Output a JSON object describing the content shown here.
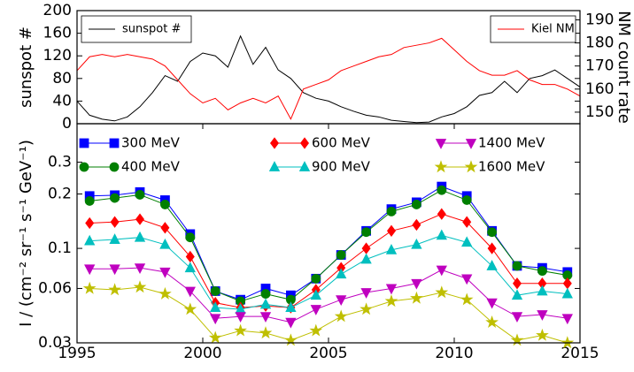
{
  "chart_data": [
    {
      "type": "line",
      "ylabel": "sunspot #",
      "y2label": "NM count rate",
      "x": [
        1995,
        1995.5,
        1996,
        1996.5,
        1997,
        1997.5,
        1998,
        1998.5,
        1999,
        1999.5,
        2000,
        2000.5,
        2001,
        2001.5,
        2002,
        2002.5,
        2003,
        2003.5,
        2004,
        2004.5,
        2005,
        2005.5,
        2006,
        2006.5,
        2007,
        2007.5,
        2008,
        2008.5,
        2009,
        2009.5,
        2010,
        2010.5,
        2011,
        2011.5,
        2012,
        2012.5,
        2013,
        2013.5,
        2014,
        2014.5,
        2015
      ],
      "xlim": [
        1995,
        2015
      ],
      "ylim": [
        0,
        200
      ],
      "yticks": [
        0,
        40,
        80,
        120,
        160,
        200
      ],
      "y2lim": [
        145,
        194
      ],
      "y2ticks": [
        150,
        160,
        170,
        180,
        190
      ],
      "series": [
        {
          "name": "sunspot #",
          "color": "#000000",
          "axis": "y",
          "legend": "upper left",
          "values": [
            40,
            15,
            8,
            5,
            12,
            30,
            55,
            85,
            75,
            110,
            125,
            120,
            100,
            155,
            105,
            135,
            95,
            80,
            55,
            45,
            40,
            30,
            22,
            15,
            12,
            6,
            4,
            2,
            3,
            12,
            18,
            30,
            50,
            55,
            75,
            55,
            80,
            85,
            95,
            80,
            65
          ]
        },
        {
          "name": "Kiel NM",
          "color": "#ff0000",
          "axis": "y2",
          "legend": "upper right",
          "values": [
            168,
            174,
            175,
            174,
            175,
            174,
            173,
            170,
            164,
            158,
            154,
            156,
            151,
            154,
            156,
            154,
            157,
            147,
            160,
            162,
            164,
            168,
            170,
            172,
            174,
            175,
            178,
            179,
            180,
            182,
            177,
            172,
            168,
            166,
            166,
            168,
            164,
            162,
            162,
            160,
            157
          ]
        }
      ]
    },
    {
      "type": "line",
      "log_y": true,
      "ylabel": "I / (cm⁻² sr⁻¹ s⁻¹ GeV⁻¹)",
      "x": [
        1995.5,
        1996.5,
        1997.5,
        1998.5,
        1999.5,
        2000.5,
        2001.5,
        2002.5,
        2003.5,
        2004.5,
        2005.5,
        2006.5,
        2007.5,
        2008.5,
        2009.5,
        2010.5,
        2011.5,
        2012.5,
        2013.5,
        2014.5
      ],
      "xlim": [
        1995,
        2015
      ],
      "xticks": [
        1995,
        2000,
        2005,
        2010,
        2015
      ],
      "ylim": [
        0.03,
        0.49
      ],
      "yticks": [
        0.03,
        0.06,
        0.1,
        0.2,
        0.3
      ],
      "legend": "upper center",
      "series": [
        {
          "name": "300 MeV",
          "color": "#0000ff",
          "marker": "square",
          "values": [
            0.195,
            0.197,
            0.205,
            0.185,
            0.12,
            0.058,
            0.052,
            0.06,
            0.055,
            0.068,
            0.092,
            0.125,
            0.165,
            0.18,
            0.22,
            0.195,
            0.125,
            0.08,
            0.078,
            0.074
          ]
        },
        {
          "name": "400 MeV",
          "color": "#007f00",
          "marker": "circle",
          "values": [
            0.183,
            0.19,
            0.198,
            0.175,
            0.115,
            0.058,
            0.051,
            0.056,
            0.052,
            0.068,
            0.092,
            0.123,
            0.16,
            0.175,
            0.21,
            0.185,
            0.123,
            0.08,
            0.075,
            0.071
          ]
        },
        {
          "name": "600 MeV",
          "color": "#ff0000",
          "marker": "diamond",
          "values": [
            0.138,
            0.14,
            0.145,
            0.13,
            0.09,
            0.05,
            0.047,
            0.048,
            0.047,
            0.059,
            0.078,
            0.1,
            0.125,
            0.135,
            0.155,
            0.14,
            0.1,
            0.064,
            0.064,
            0.064
          ]
        },
        {
          "name": "900 MeV",
          "color": "#00bfbf",
          "marker": "triangle-up",
          "values": [
            0.11,
            0.112,
            0.115,
            0.105,
            0.078,
            0.047,
            0.046,
            0.049,
            0.047,
            0.055,
            0.072,
            0.087,
            0.098,
            0.105,
            0.118,
            0.108,
            0.08,
            0.055,
            0.058,
            0.056
          ]
        },
        {
          "name": "1400 MeV",
          "color": "#bf00bf",
          "marker": "triangle-down",
          "values": [
            0.077,
            0.077,
            0.078,
            0.074,
            0.058,
            0.041,
            0.042,
            0.042,
            0.039,
            0.046,
            0.052,
            0.057,
            0.06,
            0.064,
            0.076,
            0.068,
            0.05,
            0.042,
            0.043,
            0.041
          ]
        },
        {
          "name": "1600 MeV",
          "color": "#bfbf00",
          "marker": "star",
          "values": [
            0.06,
            0.059,
            0.061,
            0.056,
            0.046,
            0.032,
            0.035,
            0.034,
            0.031,
            0.035,
            0.042,
            0.046,
            0.051,
            0.053,
            0.057,
            0.052,
            0.039,
            0.031,
            0.033,
            0.03
          ]
        }
      ]
    }
  ]
}
